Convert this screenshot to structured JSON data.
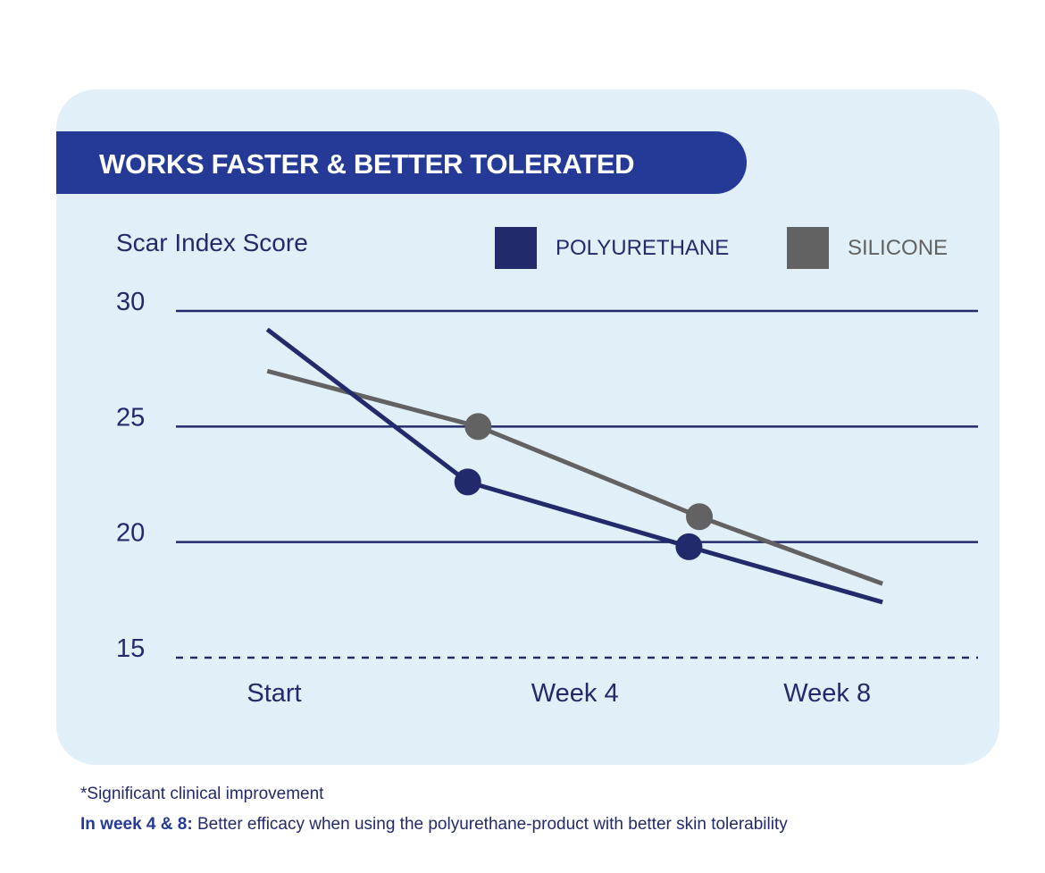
{
  "chart_data": {
    "type": "line",
    "title": "WORKS FASTER & BETTER TOLERATED",
    "ylabel": "Scar Index Score",
    "xlabel": "",
    "ylim": [
      15,
      30
    ],
    "yticks": [
      30,
      25,
      20,
      15
    ],
    "xticks": [
      {
        "label": "Start",
        "x": 0
      },
      {
        "label": "Week 4",
        "x": 4.35
      },
      {
        "label": "Week 8",
        "x": 8
      }
    ],
    "legend_placement": "top-right",
    "series": [
      {
        "name": "POLYURETHANE",
        "color": "#232a6b",
        "points": [
          {
            "x": -0.1,
            "y": 29.2
          },
          {
            "x": 2.8,
            "y": 22.6,
            "marker": true
          },
          {
            "x": 6.0,
            "y": 19.8,
            "marker": true
          },
          {
            "x": 8.8,
            "y": 17.4
          }
        ]
      },
      {
        "name": "SILICONE",
        "color": "#626262",
        "points": [
          {
            "x": -0.1,
            "y": 27.4
          },
          {
            "x": 2.95,
            "y": 25.0,
            "marker": true
          },
          {
            "x": 6.15,
            "y": 21.1,
            "marker": true
          },
          {
            "x": 8.8,
            "y": 18.2
          }
        ]
      }
    ]
  },
  "footnote": "*Significant clinical improvement",
  "summary": {
    "bold": "In week 4 & 8:",
    "text": " Better efficacy when using the polyurethane-product with better skin tolerability"
  }
}
